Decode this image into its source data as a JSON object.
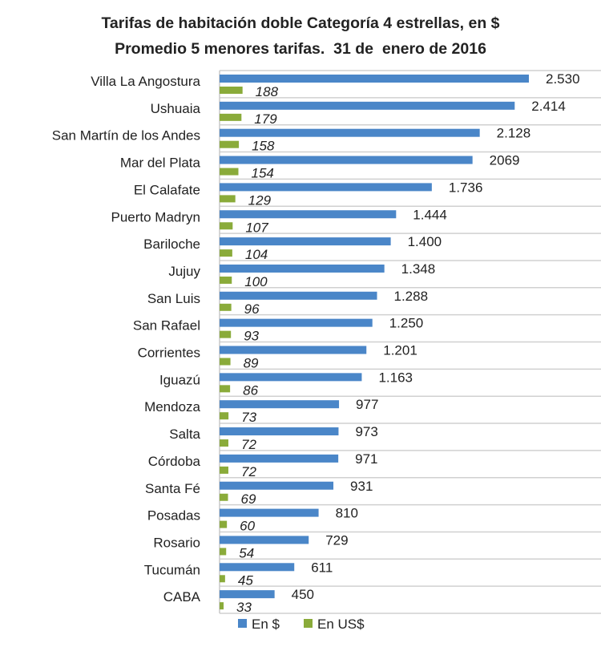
{
  "chart_data": {
    "type": "bar",
    "orientation": "horizontal",
    "title": "Tarifas de habitación doble Categoría 4 estrellas, en $",
    "subtitle": "Promedio 5 menores tarifas.  31 de  enero de 2016",
    "categories": [
      "Villa La Angostura",
      "Ushuaia",
      "San Martín de los Andes",
      "Mar del Plata",
      "El Calafate",
      "Puerto Madryn",
      "Bariloche",
      "Jujuy",
      "San Luis",
      "San Rafael",
      "Corrientes",
      "Iguazú",
      "Mendoza",
      "Salta",
      "Córdoba",
      "Santa Fé",
      "Posadas",
      "Rosario",
      "Tucumán",
      "CABA"
    ],
    "series": [
      {
        "name": "En $",
        "color": "#4a86c8",
        "values": [
          2530,
          2414,
          2128,
          2069,
          1736,
          1444,
          1400,
          1348,
          1288,
          1250,
          1201,
          1163,
          977,
          973,
          971,
          931,
          810,
          729,
          611,
          450
        ],
        "labels": [
          "2.530",
          "2.414",
          "2.128",
          "2069",
          "1.736",
          "1.444",
          "1.400",
          "1.348",
          "1.288",
          "1.250",
          "1.201",
          "1.163",
          "977",
          "973",
          "971",
          "931",
          "810",
          "729",
          "611",
          "450"
        ]
      },
      {
        "name": "En US$",
        "color": "#8aab3a",
        "values": [
          188,
          179,
          158,
          154,
          129,
          107,
          104,
          100,
          96,
          93,
          89,
          86,
          73,
          72,
          72,
          69,
          60,
          54,
          45,
          33
        ],
        "labels": [
          "188",
          "179",
          "158",
          "154",
          "129",
          "107",
          "104",
          "100",
          "96",
          "93",
          "89",
          "86",
          "73",
          "72",
          "72",
          "69",
          "60",
          "54",
          "45",
          "33"
        ]
      }
    ],
    "legend": "bottom",
    "grid": "horizontal row separators",
    "xlim": [
      0,
      2700
    ]
  }
}
